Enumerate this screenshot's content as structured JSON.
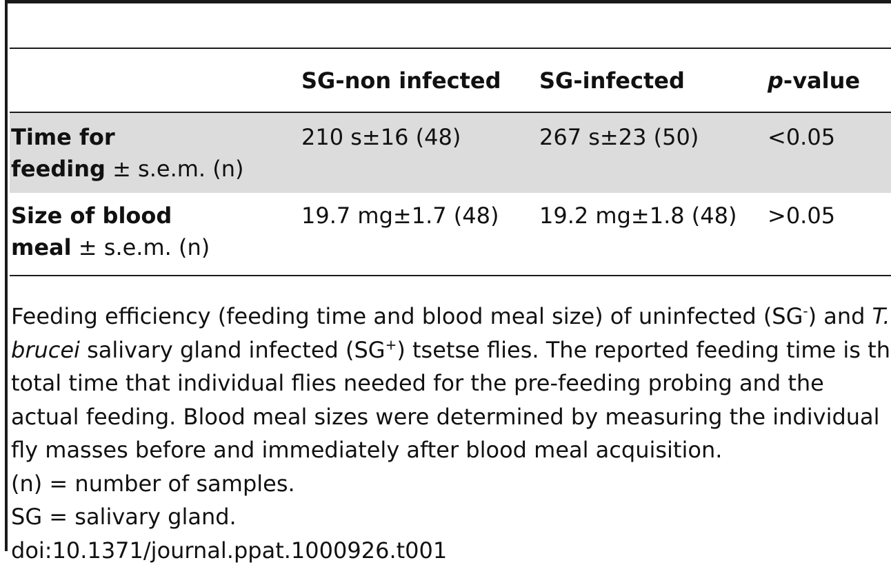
{
  "table": {
    "columns": [
      "",
      "SG-non infected",
      "SG-infected",
      "p-value"
    ],
    "header_p": "p",
    "header_value": "-value",
    "rows": [
      {
        "label_bold_1": "Time for",
        "label_bold_2": "feeding",
        "label_rest": " ± s.e.m. (n)",
        "non_infected": "210 s±16 (48)",
        "infected": "267 s±23 (50)",
        "p_value": "<0.05",
        "shaded": true
      },
      {
        "label_bold_1": "Size of blood",
        "label_bold_2": "meal",
        "label_rest": " ± s.e.m. (n)",
        "non_infected": "19.7 mg±1.7 (48)",
        "infected": "19.2 mg±1.8 (48)",
        "p_value": ">0.05",
        "shaded": false
      }
    ]
  },
  "caption": {
    "line1_a": "Feeding efficiency (feeding time and blood meal size) of uninfected (SG",
    "line1_sup": "-",
    "line1_b": ") and ",
    "line1_italic": "T.",
    "line2_italic": "brucei",
    "line2_a": " salivary gland infected (SG",
    "line2_sup": "+",
    "line2_b": ") tsetse flies. The reported feeding time is the",
    "line3": "total time that individual flies needed for the pre-feeding probing and the",
    "line4": "actual feeding. Blood meal sizes were determined by measuring the individual",
    "line5": "fly masses before and immediately after blood meal acquisition.",
    "note_n": "(n) =  number of samples.",
    "note_sg": "SG  =  salivary gland.",
    "doi": "doi:10.1371/journal.ppat.1000926.t001"
  }
}
